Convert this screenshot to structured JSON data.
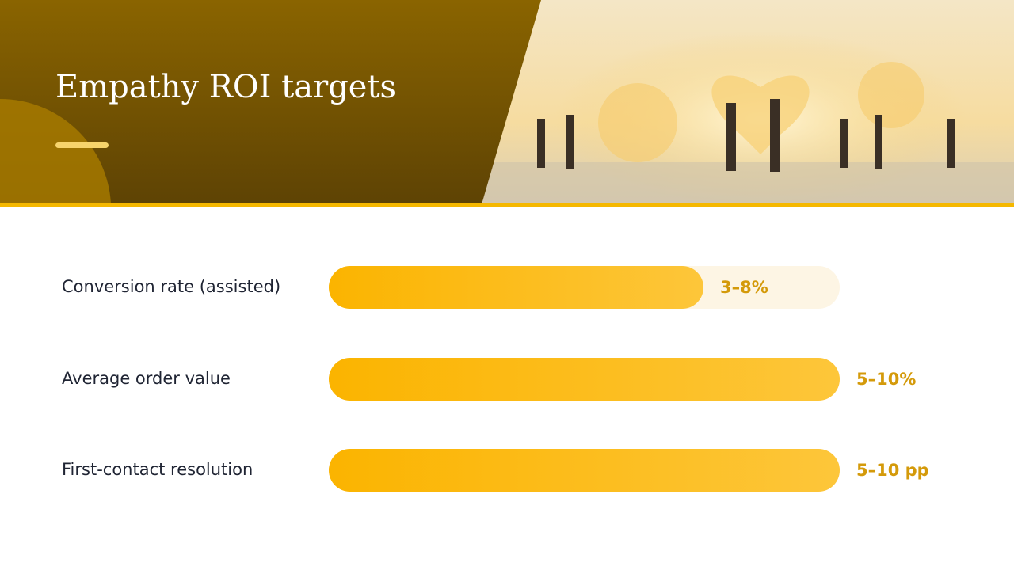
{
  "chart_data": {
    "type": "range-bar",
    "title": "Empathy ROI targets",
    "categories": [
      "Conversion rate (assisted)",
      "Average order value",
      "First-contact resolution"
    ],
    "low": [
      3,
      5,
      5
    ],
    "high": [
      8,
      10,
      10
    ],
    "value_labels": [
      "3–8%",
      "5–10%",
      "5–10 pp"
    ],
    "xlim": [
      0,
      7.5
    ],
    "color": "#fbb400"
  }
}
